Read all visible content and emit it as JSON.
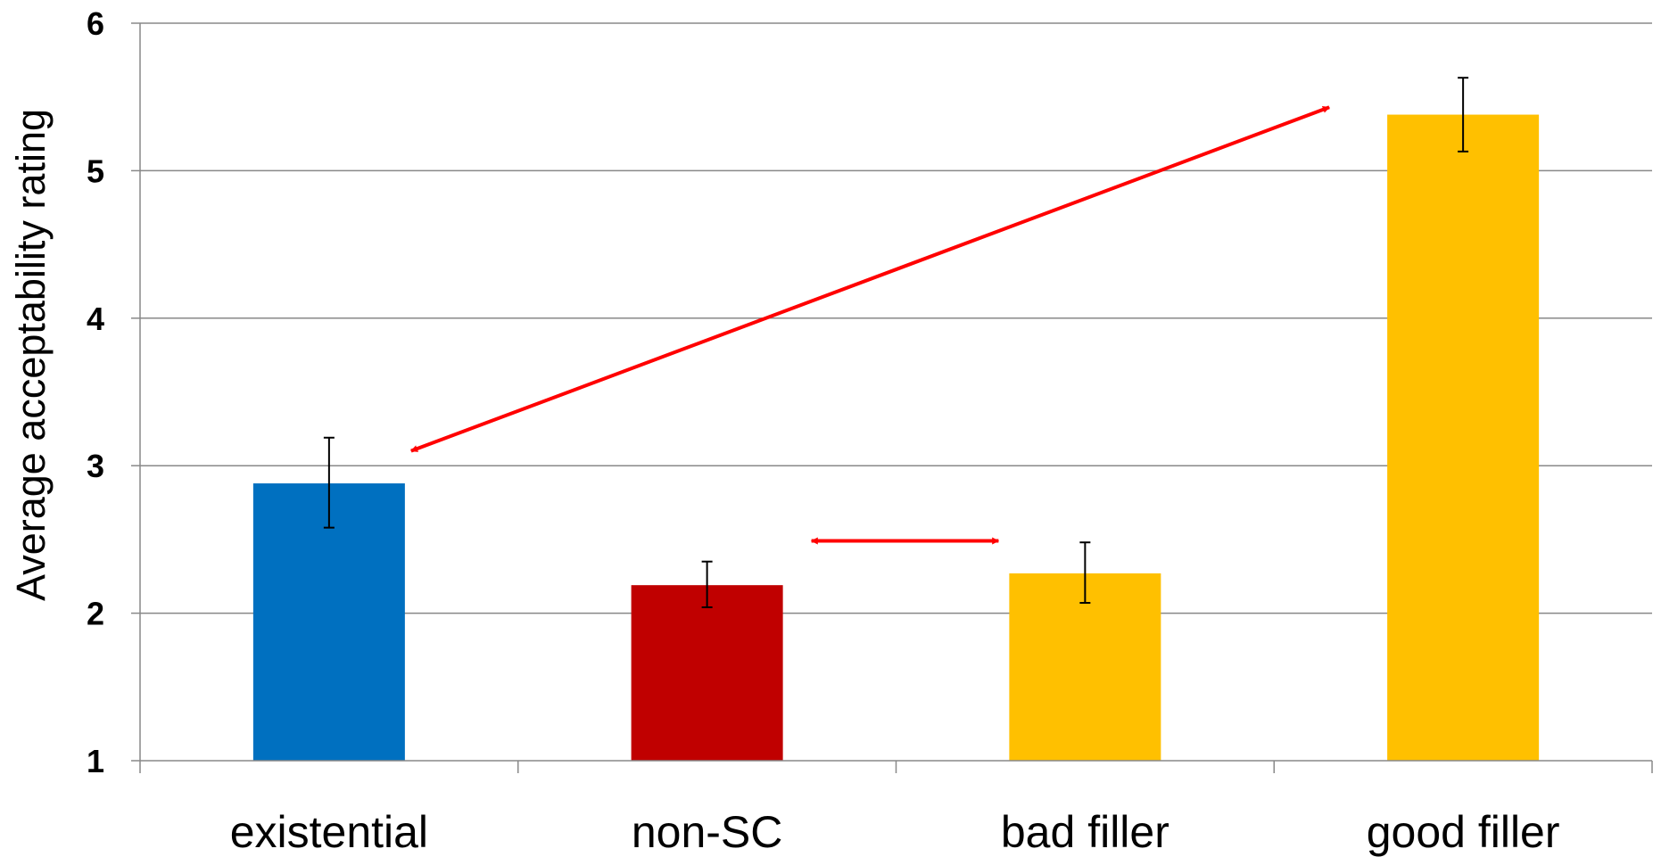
{
  "chart_data": {
    "type": "bar",
    "title": "",
    "xlabel": "",
    "ylabel": "Average acceptability rating",
    "ylim": [
      1,
      6
    ],
    "yticks": [
      1,
      2,
      3,
      4,
      5,
      6
    ],
    "grid": true,
    "categories": [
      "existential",
      "non-SC",
      "bad filler",
      "good filler"
    ],
    "values": [
      2.88,
      2.19,
      2.27,
      5.38
    ],
    "error_low": [
      2.58,
      2.04,
      2.07,
      5.13
    ],
    "error_high": [
      3.19,
      2.35,
      2.48,
      5.63
    ],
    "colors": [
      "#0070C0",
      "#C00000",
      "#FFC000",
      "#FFC000"
    ],
    "annotations": [
      {
        "type": "double-arrow",
        "from": "existential",
        "to": "good filler",
        "color": "#FF0000"
      },
      {
        "type": "double-arrow",
        "from": "non-SC",
        "to": "bad filler",
        "color": "#FF0000"
      }
    ]
  }
}
